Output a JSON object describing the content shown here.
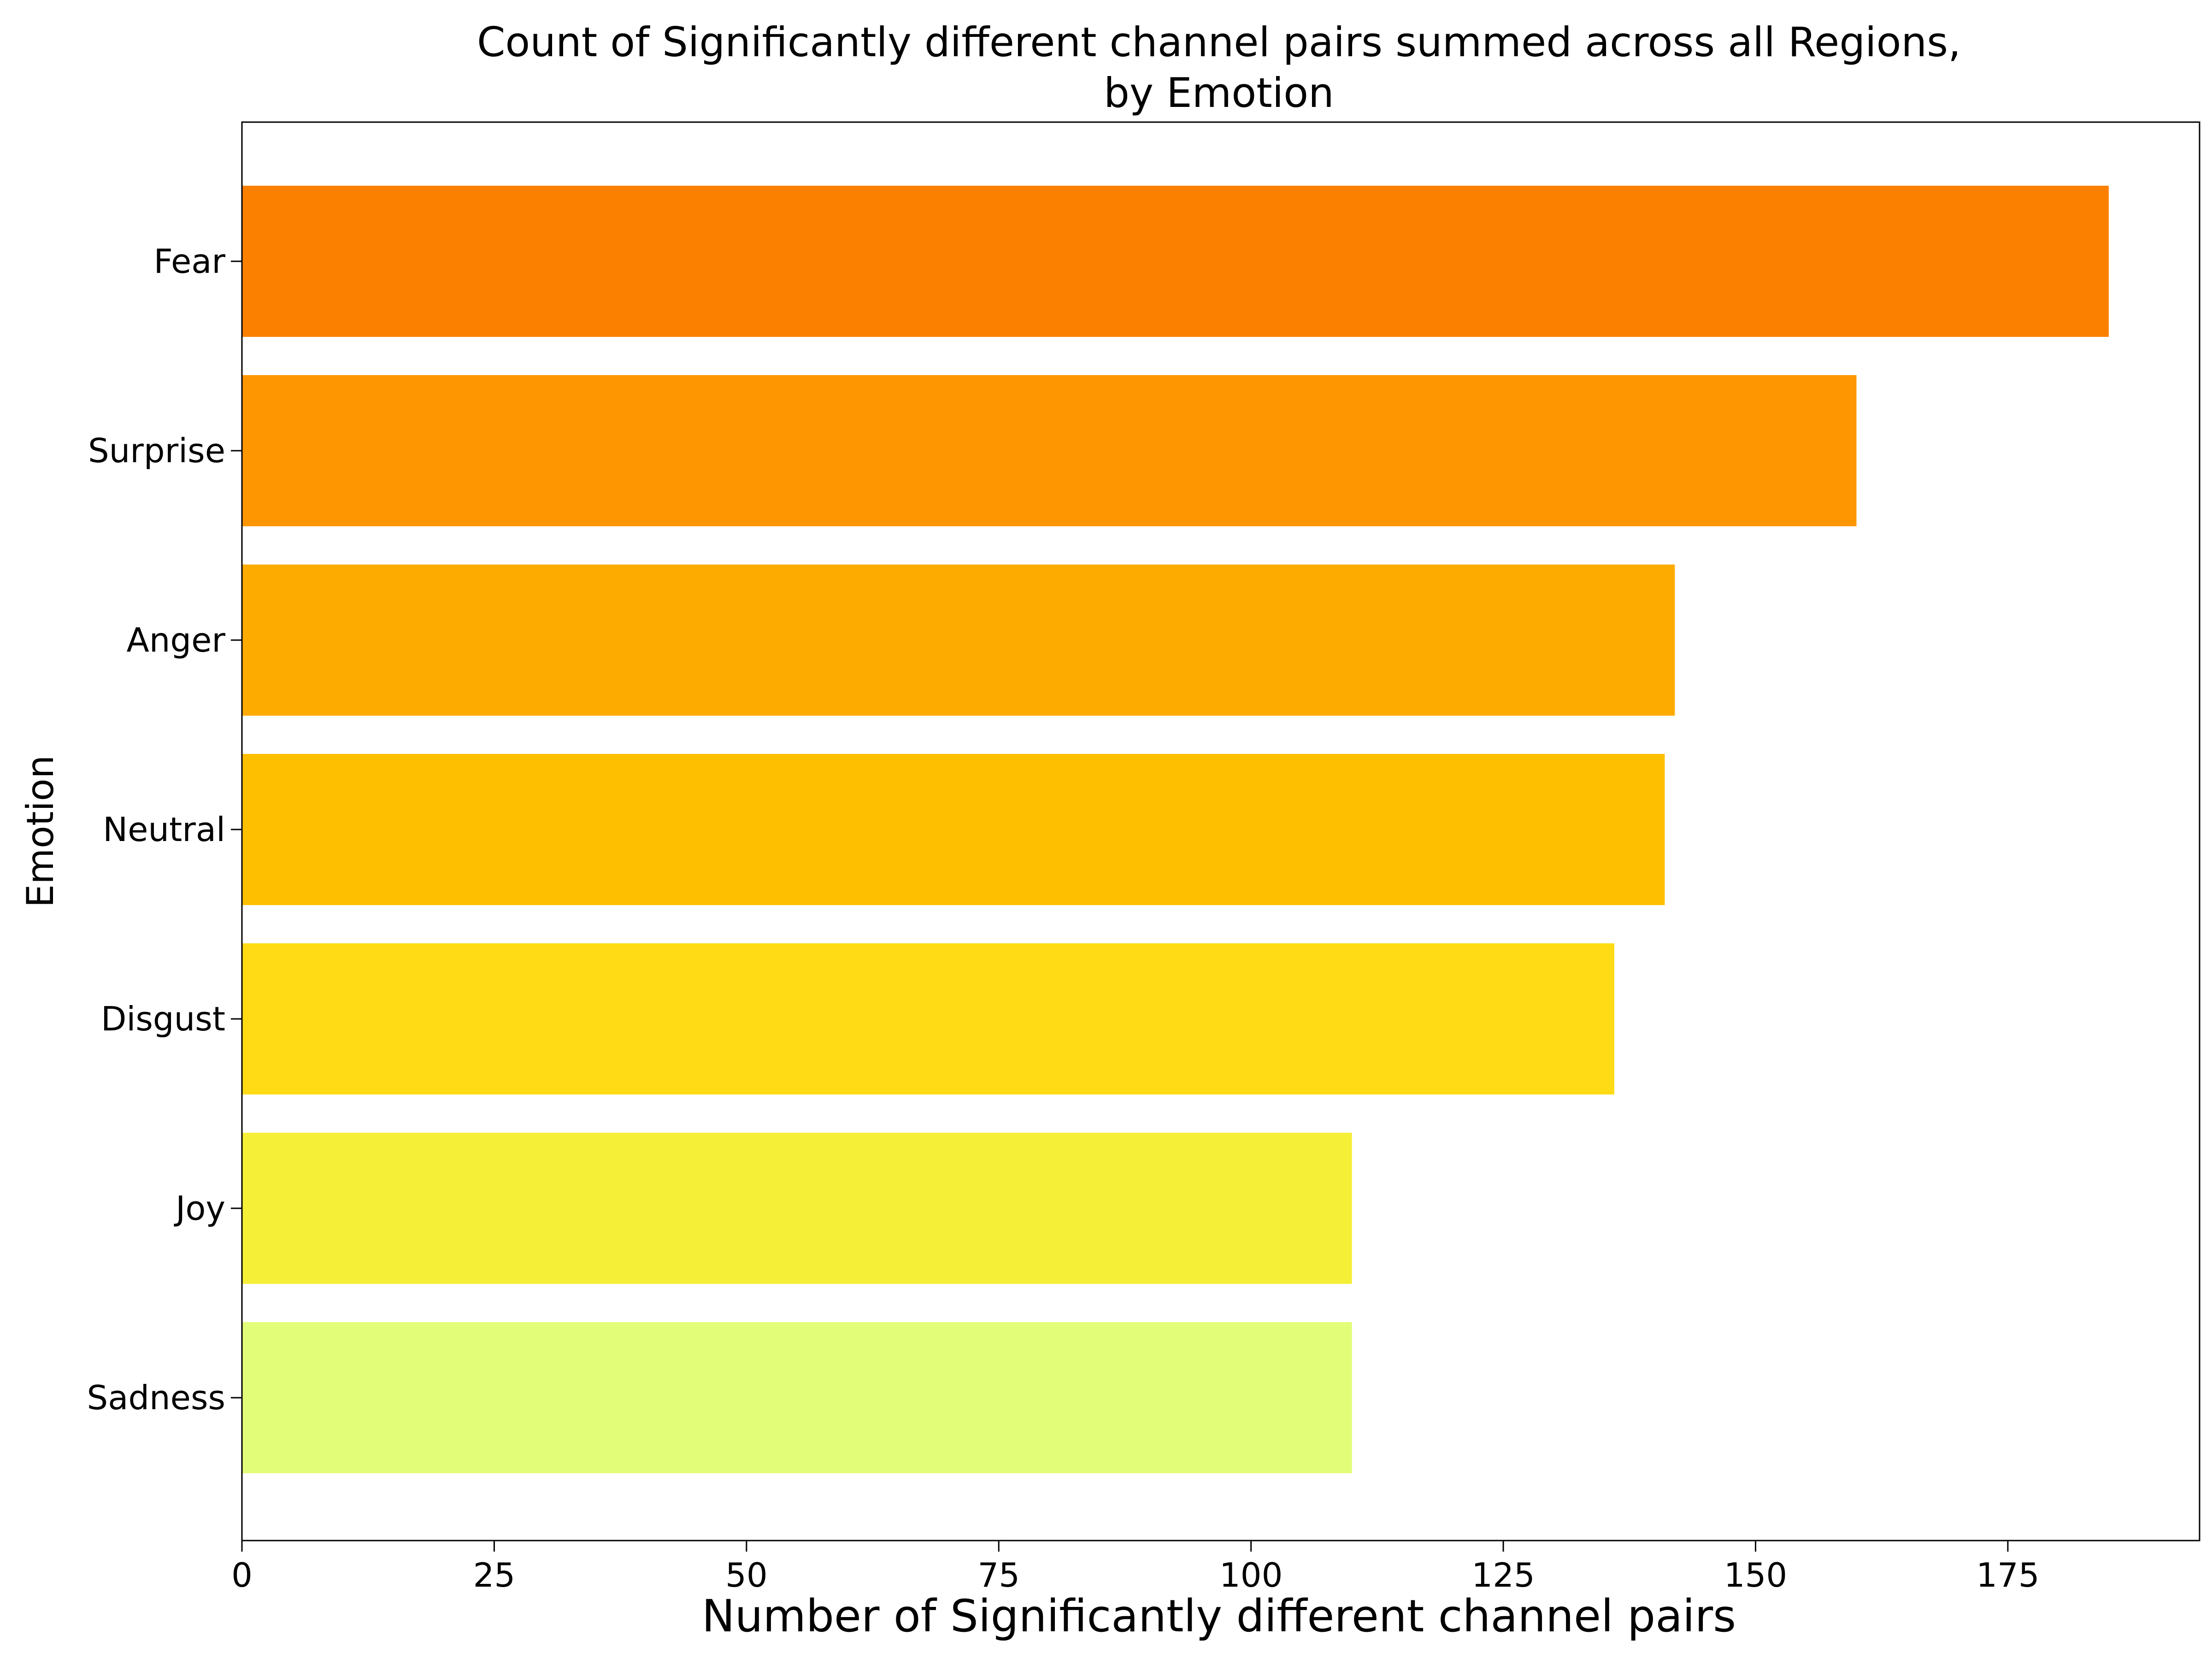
{
  "chart_data": {
    "type": "bar",
    "orientation": "horizontal",
    "title_line1": "Count of Significantly different channel pairs summed across all Regions,",
    "title_line2": "by Emotion",
    "xlabel": "Number of Significantly different channel pairs",
    "ylabel": "Emotion",
    "categories": [
      "Fear",
      "Surprise",
      "Anger",
      "Neutral",
      "Disgust",
      "Joy",
      "Sadness"
    ],
    "values": [
      185,
      160,
      142,
      141,
      136,
      110,
      110
    ],
    "colors": [
      "#fb8000",
      "#fd9600",
      "#feab00",
      "#febf00",
      "#fedb14",
      "#f5ef38",
      "#e2fd78"
    ],
    "xlim": [
      0,
      194
    ],
    "xticks": [
      "0",
      "25",
      "50",
      "75",
      "100",
      "125",
      "150",
      "175"
    ],
    "grid": false,
    "legend": "none"
  }
}
